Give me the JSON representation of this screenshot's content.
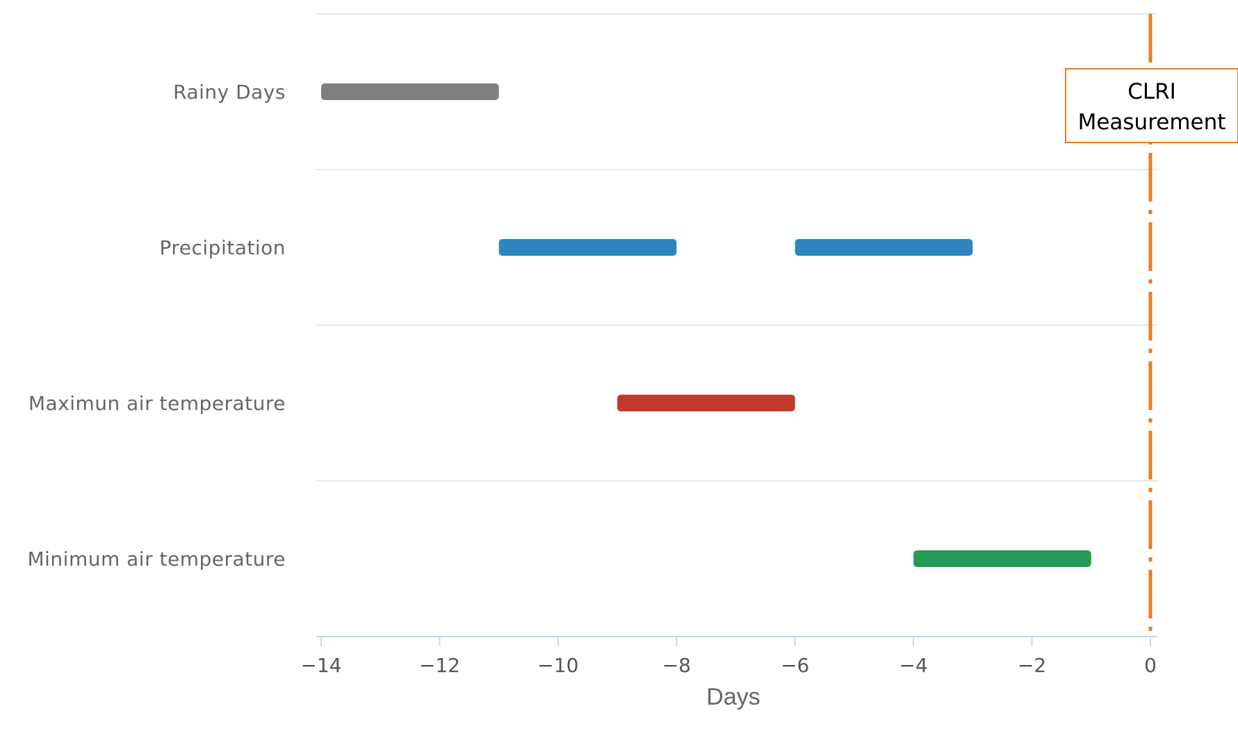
{
  "chart_data": {
    "type": "bar",
    "orientation": "horizontal",
    "xlabel": "Days",
    "xlim": [
      -14,
      0
    ],
    "xticks": [
      -14,
      -12,
      -10,
      -8,
      -6,
      -4,
      -2,
      0
    ],
    "xtick_labels": [
      "−14",
      "−12",
      "−10",
      "−8",
      "−6",
      "−4",
      "−2",
      "0"
    ],
    "categories": [
      "Rainy Days",
      "Precipitation",
      "Maximun air temperature",
      "Minimum air temperature"
    ],
    "series": [
      {
        "category": "Rainy Days",
        "color": "#808080",
        "ranges": [
          [
            -14,
            -11
          ]
        ]
      },
      {
        "category": "Precipitation",
        "color": "#2e86c1",
        "ranges": [
          [
            -11,
            -8
          ],
          [
            -6,
            -3
          ]
        ]
      },
      {
        "category": "Maximun air temperature",
        "color": "#c0392b",
        "ranges": [
          [
            -9,
            -6
          ]
        ]
      },
      {
        "category": "Minimum air temperature",
        "color": "#239b56",
        "ranges": [
          [
            -4,
            -1
          ]
        ]
      }
    ],
    "reference_line": {
      "x": 0,
      "color": "#e67e22",
      "style": "dash-dot",
      "label_lines": [
        "CLRI",
        "Measurement"
      ]
    },
    "grid": true,
    "legend": "none"
  }
}
